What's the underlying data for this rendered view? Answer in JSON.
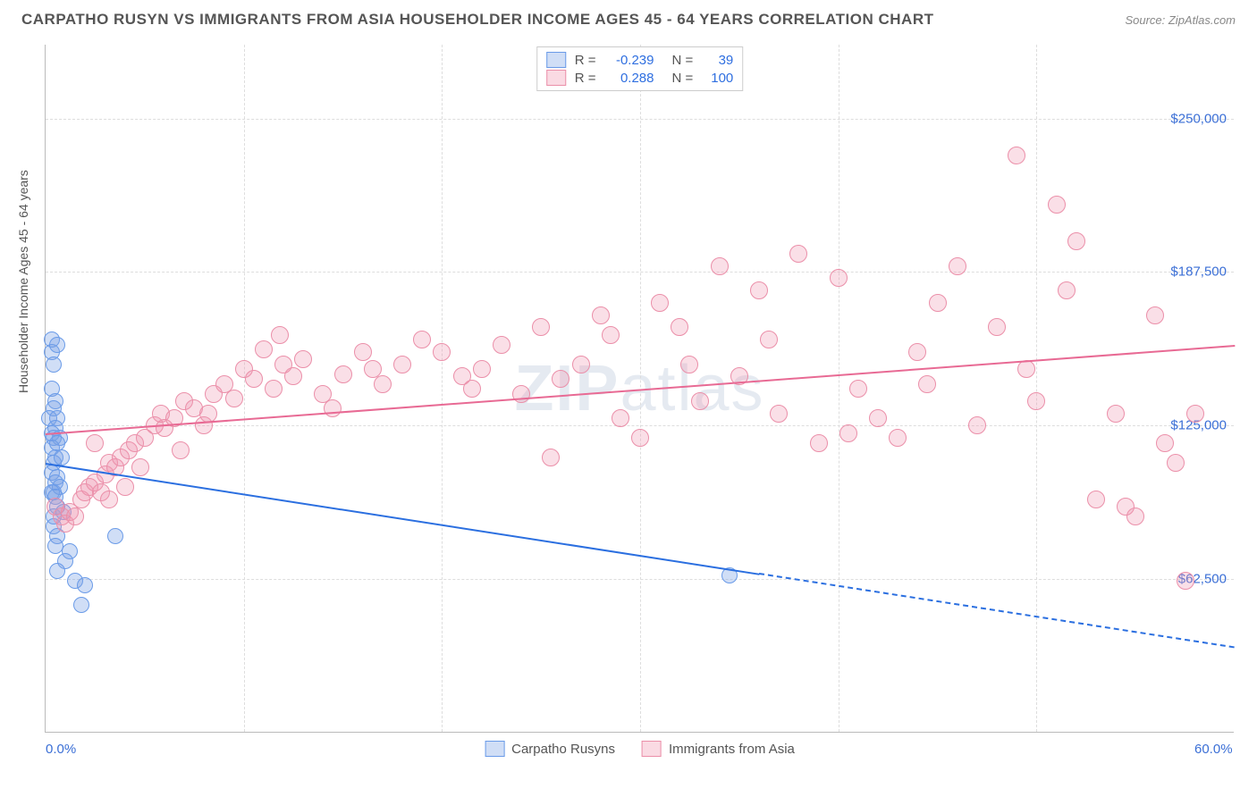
{
  "header": {
    "title": "CARPATHO RUSYN VS IMMIGRANTS FROM ASIA HOUSEHOLDER INCOME AGES 45 - 64 YEARS CORRELATION CHART",
    "source": "Source: ZipAtlas.com"
  },
  "chart": {
    "type": "scatter",
    "y_axis_label": "Householder Income Ages 45 - 64 years",
    "background_color": "#ffffff",
    "grid_color": "#dddddd",
    "axis_color": "#bbbbbb",
    "tick_label_color": "#3b6fd6",
    "y_ticks": [
      {
        "value": 62500,
        "label": "$62,500"
      },
      {
        "value": 125000,
        "label": "$125,000"
      },
      {
        "value": 187500,
        "label": "$187,500"
      },
      {
        "value": 250000,
        "label": "$250,000"
      }
    ],
    "x_ticks": [
      {
        "value": 0,
        "label": "0.0%"
      },
      {
        "value": 60,
        "label": "60.0%"
      }
    ],
    "x_grid_values": [
      10,
      20,
      30,
      40,
      50
    ],
    "xlim": [
      0,
      60
    ],
    "ylim": [
      0,
      280000
    ],
    "watermark": "ZIPatlas",
    "legend_top": {
      "rows": [
        {
          "swatch_fill": "rgba(120,160,230,0.35)",
          "swatch_border": "#6a9be8",
          "r_label": "R =",
          "r_value": "-0.239",
          "n_label": "N =",
          "n_value": "39"
        },
        {
          "swatch_fill": "rgba(240,150,175,0.35)",
          "swatch_border": "#eb8fa9",
          "r_label": "R =",
          "r_value": "0.288",
          "n_label": "N =",
          "n_value": "100"
        }
      ],
      "value_color": "#2f6fe0"
    },
    "legend_bottom": [
      {
        "swatch_fill": "rgba(120,160,230,0.35)",
        "swatch_border": "#6a9be8",
        "label": "Carpatho Rusyns"
      },
      {
        "swatch_fill": "rgba(240,150,175,0.35)",
        "swatch_border": "#eb8fa9",
        "label": "Immigrants from Asia"
      }
    ],
    "series": [
      {
        "name": "Carpatho Rusyns",
        "fill": "rgba(120,160,230,0.35)",
        "stroke": "#6a9be8",
        "marker_radius": 9,
        "trend": {
          "color": "#2b6fe0",
          "x1": 0,
          "y1": 110000,
          "x2": 36,
          "y2": 65000,
          "dash_x2": 60,
          "dash_y2": 35000
        },
        "points": [
          [
            0.3,
            160000
          ],
          [
            0.3,
            155000
          ],
          [
            0.4,
            150000
          ],
          [
            0.6,
            158000
          ],
          [
            0.3,
            140000
          ],
          [
            0.5,
            135000
          ],
          [
            0.4,
            132000
          ],
          [
            0.2,
            128000
          ],
          [
            0.6,
            128000
          ],
          [
            0.5,
            124000
          ],
          [
            0.3,
            122000
          ],
          [
            0.4,
            120000
          ],
          [
            0.7,
            120000
          ],
          [
            0.3,
            116000
          ],
          [
            0.6,
            118000
          ],
          [
            0.5,
            112000
          ],
          [
            0.4,
            110000
          ],
          [
            0.8,
            112000
          ],
          [
            0.3,
            106000
          ],
          [
            0.6,
            104000
          ],
          [
            0.5,
            102000
          ],
          [
            0.4,
            98000
          ],
          [
            0.7,
            100000
          ],
          [
            0.3,
            98000
          ],
          [
            0.5,
            96000
          ],
          [
            0.6,
            92000
          ],
          [
            0.4,
            88000
          ],
          [
            0.9,
            90000
          ],
          [
            0.4,
            84000
          ],
          [
            0.6,
            80000
          ],
          [
            0.5,
            76000
          ],
          [
            1.2,
            74000
          ],
          [
            1.0,
            70000
          ],
          [
            0.6,
            66000
          ],
          [
            1.5,
            62000
          ],
          [
            2.0,
            60000
          ],
          [
            1.8,
            52000
          ],
          [
            3.5,
            80000
          ],
          [
            34.5,
            64000
          ]
        ]
      },
      {
        "name": "Immigrants from Asia",
        "fill": "rgba(240,150,175,0.3)",
        "stroke": "#eb8fa9",
        "marker_radius": 10,
        "trend": {
          "color": "#e86a94",
          "x1": 0,
          "y1": 122000,
          "x2": 60,
          "y2": 158000
        },
        "points": [
          [
            0.5,
            92000
          ],
          [
            0.8,
            88000
          ],
          [
            1.0,
            85000
          ],
          [
            1.2,
            90000
          ],
          [
            1.5,
            88000
          ],
          [
            1.8,
            95000
          ],
          [
            2.0,
            98000
          ],
          [
            2.2,
            100000
          ],
          [
            2.5,
            102000
          ],
          [
            2.8,
            98000
          ],
          [
            3.0,
            105000
          ],
          [
            3.2,
            110000
          ],
          [
            3.5,
            108000
          ],
          [
            3.8,
            112000
          ],
          [
            4.0,
            100000
          ],
          [
            4.2,
            115000
          ],
          [
            4.5,
            118000
          ],
          [
            4.8,
            108000
          ],
          [
            5.0,
            120000
          ],
          [
            5.5,
            125000
          ],
          [
            5.8,
            130000
          ],
          [
            6.0,
            124000
          ],
          [
            6.5,
            128000
          ],
          [
            7.0,
            135000
          ],
          [
            7.5,
            132000
          ],
          [
            8.0,
            125000
          ],
          [
            8.5,
            138000
          ],
          [
            9.0,
            142000
          ],
          [
            9.5,
            136000
          ],
          [
            10.0,
            148000
          ],
          [
            10.5,
            144000
          ],
          [
            11.0,
            156000
          ],
          [
            11.5,
            140000
          ],
          [
            12.0,
            150000
          ],
          [
            12.5,
            145000
          ],
          [
            13.0,
            152000
          ],
          [
            14.0,
            138000
          ],
          [
            15.0,
            146000
          ],
          [
            16.0,
            155000
          ],
          [
            17.0,
            142000
          ],
          [
            18.0,
            150000
          ],
          [
            19.0,
            160000
          ],
          [
            20.0,
            155000
          ],
          [
            21.0,
            145000
          ],
          [
            22.0,
            148000
          ],
          [
            23.0,
            158000
          ],
          [
            24.0,
            138000
          ],
          [
            25.0,
            165000
          ],
          [
            26.0,
            144000
          ],
          [
            27.0,
            150000
          ],
          [
            28.0,
            170000
          ],
          [
            29.0,
            128000
          ],
          [
            30.0,
            120000
          ],
          [
            31.0,
            175000
          ],
          [
            32.0,
            165000
          ],
          [
            33.0,
            135000
          ],
          [
            34.0,
            190000
          ],
          [
            35.0,
            145000
          ],
          [
            36.0,
            180000
          ],
          [
            37.0,
            130000
          ],
          [
            38.0,
            195000
          ],
          [
            39.0,
            118000
          ],
          [
            40.0,
            185000
          ],
          [
            41.0,
            140000
          ],
          [
            42.0,
            128000
          ],
          [
            43.0,
            120000
          ],
          [
            44.0,
            155000
          ],
          [
            45.0,
            175000
          ],
          [
            46.0,
            190000
          ],
          [
            48.0,
            165000
          ],
          [
            49.0,
            235000
          ],
          [
            50.0,
            135000
          ],
          [
            51.0,
            215000
          ],
          [
            52.0,
            200000
          ],
          [
            53.0,
            95000
          ],
          [
            54.0,
            130000
          ],
          [
            55.0,
            88000
          ],
          [
            56.0,
            170000
          ],
          [
            57.0,
            110000
          ],
          [
            57.5,
            62000
          ],
          [
            58.0,
            130000
          ],
          [
            2.5,
            118000
          ],
          [
            3.2,
            95000
          ],
          [
            6.8,
            115000
          ],
          [
            8.2,
            130000
          ],
          [
            11.8,
            162000
          ],
          [
            14.5,
            132000
          ],
          [
            16.5,
            148000
          ],
          [
            21.5,
            140000
          ],
          [
            25.5,
            112000
          ],
          [
            28.5,
            162000
          ],
          [
            32.5,
            150000
          ],
          [
            36.5,
            160000
          ],
          [
            40.5,
            122000
          ],
          [
            44.5,
            142000
          ],
          [
            47.0,
            125000
          ],
          [
            49.5,
            148000
          ],
          [
            51.5,
            180000
          ],
          [
            54.5,
            92000
          ],
          [
            56.5,
            118000
          ]
        ]
      }
    ]
  }
}
